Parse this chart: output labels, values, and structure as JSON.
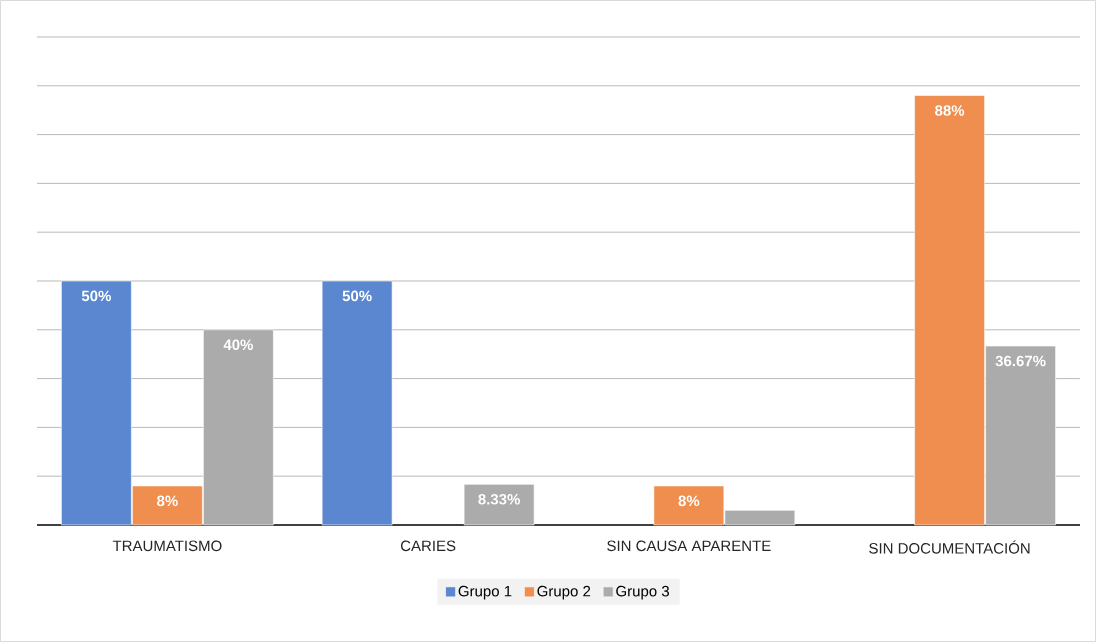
{
  "chart_data": {
    "type": "bar",
    "categories": [
      "TRAUMATISMO",
      "CARIES",
      "SIN CAUSA APARENTE",
      "SIN DOCUMENTACIÓN"
    ],
    "series": [
      {
        "name": "Grupo 1",
        "color": "#5b87d0",
        "values": [
          50,
          50,
          null,
          null
        ],
        "value_labels": [
          "50%",
          "50%",
          null,
          null
        ]
      },
      {
        "name": "Grupo 2",
        "color": "#ef8e4e",
        "values": [
          8,
          null,
          8,
          88
        ],
        "value_labels": [
          "8%",
          null,
          "8%",
          "88%"
        ]
      },
      {
        "name": "Grupo 3",
        "color": "#ababab",
        "values": [
          40,
          8.33,
          3,
          36.67
        ],
        "value_labels": [
          "40%",
          "8.33%",
          null,
          "36.67%"
        ]
      }
    ],
    "ylim": [
      0,
      100
    ],
    "tick_labels": "x",
    "grid": "y",
    "legend": "bottom"
  }
}
